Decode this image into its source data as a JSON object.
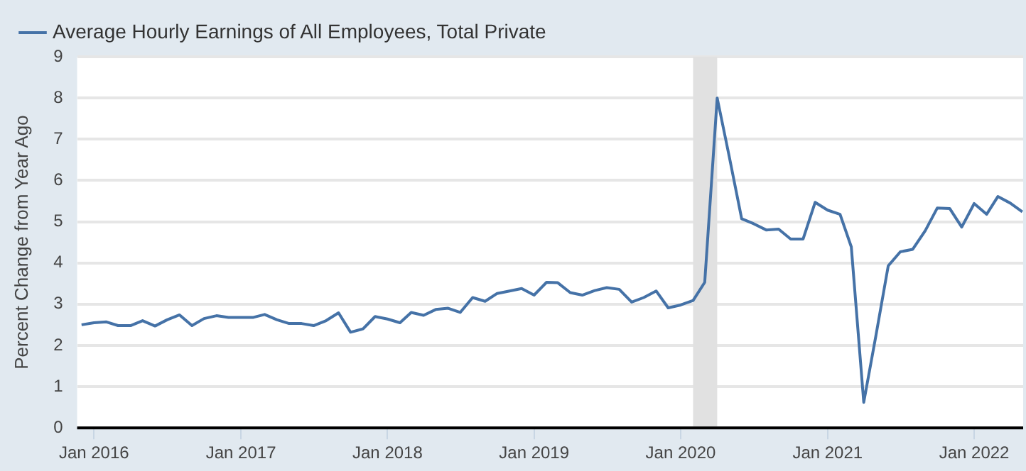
{
  "chart_data": {
    "type": "line",
    "ylabel": "Percent Change from Year Ago",
    "legend": "top left",
    "grid": "y",
    "marker": "none",
    "line_style": "solid",
    "x": [
      "2015-12",
      "2016-01",
      "2016-02",
      "2016-03",
      "2016-04",
      "2016-05",
      "2016-06",
      "2016-07",
      "2016-08",
      "2016-09",
      "2016-10",
      "2016-11",
      "2016-12",
      "2017-01",
      "2017-02",
      "2017-03",
      "2017-04",
      "2017-05",
      "2017-06",
      "2017-07",
      "2017-08",
      "2017-09",
      "2017-10",
      "2017-11",
      "2017-12",
      "2018-01",
      "2018-02",
      "2018-03",
      "2018-04",
      "2018-05",
      "2018-06",
      "2018-07",
      "2018-08",
      "2018-09",
      "2018-10",
      "2018-11",
      "2018-12",
      "2019-01",
      "2019-02",
      "2019-03",
      "2019-04",
      "2019-05",
      "2019-06",
      "2019-07",
      "2019-08",
      "2019-09",
      "2019-10",
      "2019-11",
      "2019-12",
      "2020-01",
      "2020-02",
      "2020-03",
      "2020-04",
      "2020-05",
      "2020-06",
      "2020-07",
      "2020-08",
      "2020-09",
      "2020-10",
      "2020-11",
      "2020-12",
      "2021-01",
      "2021-02",
      "2021-03",
      "2021-04",
      "2021-05",
      "2021-06",
      "2021-07",
      "2021-08",
      "2021-09",
      "2021-10",
      "2021-11",
      "2021-12",
      "2022-01",
      "2022-02",
      "2022-03",
      "2022-04",
      "2022-05"
    ],
    "series": [
      {
        "name": "Average Hourly Earnings of All Employees, Total Private",
        "color": "#4572a7",
        "values": [
          2.5,
          2.55,
          2.57,
          2.48,
          2.48,
          2.6,
          2.47,
          2.62,
          2.74,
          2.48,
          2.65,
          2.72,
          2.68,
          2.68,
          2.68,
          2.75,
          2.62,
          2.53,
          2.53,
          2.48,
          2.6,
          2.79,
          2.32,
          2.4,
          2.7,
          2.64,
          2.55,
          2.8,
          2.73,
          2.87,
          2.9,
          2.8,
          3.16,
          3.07,
          3.26,
          3.32,
          3.38,
          3.22,
          3.53,
          3.52,
          3.28,
          3.22,
          3.33,
          3.4,
          3.36,
          3.05,
          3.16,
          3.32,
          2.91,
          2.98,
          3.09,
          3.53,
          8.0,
          6.58,
          5.07,
          4.95,
          4.8,
          4.82,
          4.58,
          4.58,
          5.47,
          5.28,
          5.18,
          4.39,
          0.62,
          2.22,
          3.93,
          4.27,
          4.33,
          4.78,
          5.33,
          5.32,
          4.87,
          5.44,
          5.18,
          5.61,
          5.45,
          5.24
        ]
      }
    ],
    "xlim": [
      "2015-11-20",
      "2022-05-03"
    ],
    "xticks": [
      {
        "value": "2016-01",
        "label": "Jan 2016"
      },
      {
        "value": "2017-01",
        "label": "Jan 2017"
      },
      {
        "value": "2018-01",
        "label": "Jan 2018"
      },
      {
        "value": "2019-01",
        "label": "Jan 2019"
      },
      {
        "value": "2020-01",
        "label": "Jan 2020"
      },
      {
        "value": "2021-01",
        "label": "Jan 2021"
      },
      {
        "value": "2022-01",
        "label": "Jan 2022"
      }
    ],
    "ylim": [
      0,
      9
    ],
    "yticks": [
      0,
      1,
      2,
      3,
      4,
      5,
      6,
      7,
      8,
      9
    ],
    "bands": [
      {
        "axis": "x",
        "from": "2020-02",
        "to": "2020-04",
        "color": "#e1e1e1"
      }
    ]
  }
}
